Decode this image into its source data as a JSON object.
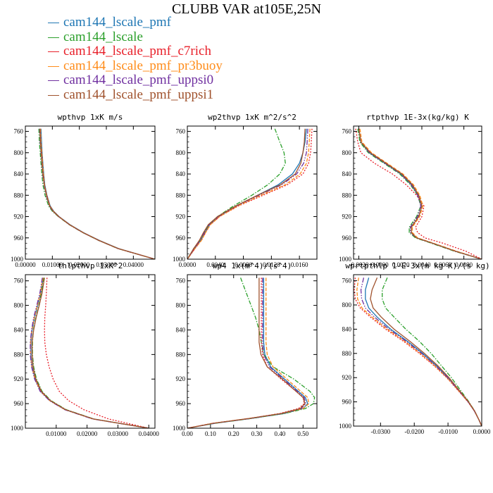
{
  "title": "CLUBB VAR at105E,25N",
  "legend": [
    {
      "label": "cam144_lscale_pmf",
      "color": "#1f77b4",
      "dash": ""
    },
    {
      "label": "cam144_lscale",
      "color": "#2ca02c",
      "dash": "6,2,1.5,2"
    },
    {
      "label": "cam144_lscale_pmf_c7rich",
      "color": "#e8202a",
      "dash": "2,2"
    },
    {
      "label": "cam144_lscale_pmf_pr3buoy",
      "color": "#ff8c1a",
      "dash": "5,2"
    },
    {
      "label": "cam144_lscale_pmf_uppsi0",
      "color": "#7030a0",
      "dash": "7,2,1.5,2,1.5,2"
    },
    {
      "label": "cam144_lscale_pmf_uppsi1",
      "color": "#a0522d",
      "dash": ""
    }
  ],
  "chart_data": [
    {
      "type": "line",
      "title": "wpthvp 1xK m/s",
      "xlim": [
        0,
        0.048
      ],
      "ylim": [
        750,
        1000
      ],
      "xticks": [
        0,
        0.01,
        0.02,
        0.03,
        0.04
      ],
      "xtick_labels": [
        "0.00000",
        "0.01000",
        "0.02000",
        "0.03000",
        "0.04000"
      ],
      "yticks": [
        760,
        800,
        840,
        880,
        920,
        960,
        1000
      ],
      "y": [
        755,
        780,
        800,
        820,
        840,
        860,
        880,
        900,
        910,
        920,
        935,
        950,
        965,
        980,
        1000
      ],
      "series": [
        {
          "values": [
            0.0058,
            0.006,
            0.0062,
            0.0065,
            0.0068,
            0.0072,
            0.008,
            0.0092,
            0.0105,
            0.0125,
            0.0165,
            0.0215,
            0.0275,
            0.0345,
            0.048
          ]
        },
        {
          "values": [
            0.005,
            0.0052,
            0.0055,
            0.0058,
            0.0061,
            0.0065,
            0.0073,
            0.0086,
            0.01,
            0.0122,
            0.0162,
            0.0212,
            0.0272,
            0.0342,
            0.048
          ]
        },
        {
          "values": [
            0.0055,
            0.0057,
            0.006,
            0.0063,
            0.0066,
            0.0071,
            0.0079,
            0.0091,
            0.0104,
            0.0124,
            0.0163,
            0.0213,
            0.0273,
            0.0343,
            0.048
          ]
        },
        {
          "values": [
            0.0056,
            0.0058,
            0.0061,
            0.0064,
            0.0067,
            0.0071,
            0.0079,
            0.0091,
            0.0104,
            0.0124,
            0.0164,
            0.0214,
            0.0274,
            0.0344,
            0.048
          ]
        },
        {
          "values": [
            0.0053,
            0.0055,
            0.0058,
            0.0061,
            0.0064,
            0.0069,
            0.0077,
            0.0089,
            0.0102,
            0.0123,
            0.0163,
            0.0213,
            0.0273,
            0.0343,
            0.048
          ]
        },
        {
          "values": [
            0.0054,
            0.0056,
            0.0059,
            0.0062,
            0.0065,
            0.007,
            0.0078,
            0.009,
            0.0103,
            0.0123,
            0.0163,
            0.0213,
            0.0273,
            0.0343,
            0.048
          ]
        }
      ]
    },
    {
      "type": "line",
      "title": "wp2thvp 1xK m^2/s^2",
      "xlim": [
        0,
        0.0185
      ],
      "ylim": [
        750,
        1000
      ],
      "xticks": [
        0,
        0.004,
        0.008,
        0.012,
        0.016
      ],
      "xtick_labels": [
        "0.0000",
        "0.0040",
        "0.0080",
        "0.0120",
        "0.0160"
      ],
      "yticks": [
        760,
        800,
        840,
        880,
        920,
        960,
        1000
      ],
      "y": [
        755,
        780,
        800,
        820,
        840,
        860,
        880,
        900,
        920,
        935,
        950,
        965,
        980,
        1000
      ],
      "series": [
        {
          "values": [
            0.017,
            0.0168,
            0.0165,
            0.016,
            0.015,
            0.013,
            0.01,
            0.007,
            0.0045,
            0.0032,
            0.0025,
            0.0019,
            0.001,
            0.0
          ]
        },
        {
          "values": [
            0.0125,
            0.0132,
            0.0138,
            0.014,
            0.0132,
            0.0115,
            0.0092,
            0.0066,
            0.0043,
            0.0031,
            0.0024,
            0.0018,
            0.0009,
            0.0
          ]
        },
        {
          "values": [
            0.0178,
            0.0177,
            0.0176,
            0.0173,
            0.0165,
            0.0143,
            0.0108,
            0.0073,
            0.0046,
            0.0033,
            0.0026,
            0.002,
            0.0011,
            0.0
          ]
        },
        {
          "values": [
            0.0175,
            0.0174,
            0.0173,
            0.017,
            0.0161,
            0.014,
            0.0105,
            0.0072,
            0.0046,
            0.0033,
            0.0026,
            0.002,
            0.0011,
            0.0
          ]
        },
        {
          "values": [
            0.0172,
            0.0171,
            0.017,
            0.0166,
            0.0156,
            0.0135,
            0.0102,
            0.007,
            0.0044,
            0.0031,
            0.0024,
            0.0018,
            0.001,
            0.0
          ]
        },
        {
          "values": [
            0.0168,
            0.0167,
            0.0165,
            0.0162,
            0.0154,
            0.0133,
            0.01,
            0.0069,
            0.0043,
            0.003,
            0.0023,
            0.0017,
            0.0009,
            0.0
          ]
        }
      ]
    },
    {
      "type": "line",
      "title": "rtpthvp 1E-3x(kg/kg) K",
      "xlim": [
        -0.0025,
        0.0097
      ],
      "ylim": [
        750,
        1000
      ],
      "xticks": [
        -0.002,
        0.0,
        0.002,
        0.004,
        0.006,
        0.008
      ],
      "xtick_labels": [
        "-0.0020",
        "0.0000",
        "0.0020",
        "0.0040",
        "0.0060",
        "0.0080"
      ],
      "yticks": [
        760,
        800,
        840,
        880,
        920,
        960,
        1000
      ],
      "y": [
        755,
        780,
        800,
        820,
        840,
        860,
        880,
        900,
        920,
        940,
        950,
        960,
        970,
        985,
        1000
      ],
      "series": [
        {
          "values": [
            -0.002,
            -0.0018,
            -0.001,
            0.0005,
            0.002,
            0.003,
            0.0037,
            0.004,
            0.0037,
            0.003,
            0.003,
            0.0035,
            0.005,
            0.0072,
            0.0097
          ]
        },
        {
          "values": [
            -0.0021,
            -0.0019,
            -0.0011,
            0.0004,
            0.0019,
            0.0029,
            0.0036,
            0.0039,
            0.0035,
            0.0028,
            0.0028,
            0.0034,
            0.0049,
            0.0071,
            0.0097
          ]
        },
        {
          "values": [
            -0.0023,
            -0.0021,
            -0.0018,
            -0.0005,
            0.0012,
            0.0025,
            0.0035,
            0.0042,
            0.004,
            0.0034,
            0.0036,
            0.0043,
            0.006,
            0.0082,
            0.0097
          ]
        },
        {
          "values": [
            -0.0019,
            -0.0017,
            -0.0008,
            0.0007,
            0.0022,
            0.0032,
            0.0038,
            0.0041,
            0.0038,
            0.0031,
            0.0031,
            0.0036,
            0.0051,
            0.0073,
            0.0097
          ]
        },
        {
          "values": [
            -0.002,
            -0.0018,
            -0.001,
            0.0005,
            0.002,
            0.003,
            0.0036,
            0.0039,
            0.0036,
            0.0029,
            0.0029,
            0.0035,
            0.005,
            0.0072,
            0.0097
          ]
        },
        {
          "values": [
            -0.002,
            -0.0018,
            -0.0009,
            0.0006,
            0.0021,
            0.0031,
            0.0037,
            0.004,
            0.0037,
            0.003,
            0.003,
            0.0035,
            0.005,
            0.0072,
            0.0097
          ]
        }
      ]
    },
    {
      "type": "line",
      "title": "thlpthvp 1xK^2",
      "xlim": [
        0,
        0.042
      ],
      "ylim": [
        750,
        1000
      ],
      "xticks": [
        0.01,
        0.02,
        0.03,
        0.04
      ],
      "xtick_labels": [
        "0.01000",
        "0.02000",
        "0.03000",
        "0.04000"
      ],
      "yticks": [
        760,
        800,
        840,
        880,
        920,
        960,
        1000
      ],
      "y": [
        755,
        780,
        800,
        820,
        840,
        860,
        880,
        900,
        920,
        940,
        955,
        970,
        985,
        1000
      ],
      "series": [
        {
          "values": [
            0.0058,
            0.005,
            0.004,
            0.003,
            0.0022,
            0.0018,
            0.0018,
            0.0022,
            0.0032,
            0.005,
            0.008,
            0.013,
            0.022,
            0.04
          ]
        },
        {
          "values": [
            0.006,
            0.0052,
            0.0044,
            0.0034,
            0.0026,
            0.0023,
            0.0023,
            0.0027,
            0.0036,
            0.0054,
            0.0083,
            0.0133,
            0.0222,
            0.04
          ]
        },
        {
          "values": [
            0.007,
            0.0068,
            0.0066,
            0.0063,
            0.0062,
            0.0063,
            0.0068,
            0.0077,
            0.009,
            0.011,
            0.014,
            0.019,
            0.027,
            0.04
          ]
        },
        {
          "values": [
            0.0057,
            0.0049,
            0.0039,
            0.0029,
            0.0021,
            0.0017,
            0.0017,
            0.0021,
            0.0031,
            0.0049,
            0.0079,
            0.0129,
            0.0219,
            0.04
          ]
        },
        {
          "values": [
            0.0055,
            0.0047,
            0.0037,
            0.0027,
            0.002,
            0.0016,
            0.0016,
            0.002,
            0.003,
            0.0048,
            0.0078,
            0.0128,
            0.0218,
            0.04
          ]
        },
        {
          "values": [
            0.0062,
            0.0054,
            0.0045,
            0.0035,
            0.0027,
            0.0022,
            0.0022,
            0.0025,
            0.0034,
            0.0052,
            0.0081,
            0.0131,
            0.0221,
            0.04
          ]
        }
      ]
    },
    {
      "type": "line",
      "title": "wp4 1x(m^4)/(s^4)",
      "xlim": [
        0,
        0.56
      ],
      "ylim": [
        750,
        1000
      ],
      "xticks": [
        0,
        0.1,
        0.2,
        0.3,
        0.4,
        0.5
      ],
      "xtick_labels": [
        "0.00",
        "0.10",
        "0.20",
        "0.30",
        "0.40",
        "0.50"
      ],
      "yticks": [
        760,
        800,
        840,
        880,
        920,
        960,
        1000
      ],
      "y": [
        755,
        780,
        800,
        820,
        840,
        860,
        880,
        900,
        920,
        940,
        950,
        960,
        968,
        976,
        984,
        992,
        1000
      ],
      "series": [
        {
          "values": [
            0.33,
            0.33,
            0.33,
            0.33,
            0.33,
            0.33,
            0.335,
            0.36,
            0.42,
            0.48,
            0.51,
            0.52,
            0.5,
            0.42,
            0.28,
            0.12,
            0.0
          ]
        },
        {
          "values": [
            0.23,
            0.255,
            0.275,
            0.295,
            0.31,
            0.32,
            0.33,
            0.37,
            0.46,
            0.53,
            0.55,
            0.545,
            0.51,
            0.42,
            0.28,
            0.12,
            0.0
          ]
        },
        {
          "values": [
            0.32,
            0.32,
            0.32,
            0.32,
            0.32,
            0.32,
            0.325,
            0.345,
            0.405,
            0.47,
            0.5,
            0.505,
            0.48,
            0.4,
            0.27,
            0.11,
            0.0
          ]
        },
        {
          "values": [
            0.34,
            0.34,
            0.34,
            0.34,
            0.34,
            0.34,
            0.345,
            0.37,
            0.43,
            0.49,
            0.52,
            0.525,
            0.5,
            0.41,
            0.27,
            0.11,
            0.0
          ]
        },
        {
          "values": [
            0.325,
            0.325,
            0.325,
            0.325,
            0.325,
            0.325,
            0.33,
            0.355,
            0.415,
            0.475,
            0.505,
            0.512,
            0.492,
            0.41,
            0.275,
            0.115,
            0.0
          ]
        },
        {
          "values": [
            0.31,
            0.31,
            0.31,
            0.31,
            0.31,
            0.31,
            0.318,
            0.345,
            0.41,
            0.47,
            0.5,
            0.508,
            0.488,
            0.405,
            0.27,
            0.112,
            0.0
          ]
        }
      ]
    },
    {
      "type": "line",
      "title": "wprtpthlp 1-E-3x(m kg K)/(s kg)",
      "xlim": [
        -0.038,
        0.0
      ],
      "ylim": [
        750,
        1000
      ],
      "xticks": [
        -0.03,
        -0.02,
        -0.01,
        0.0
      ],
      "xtick_labels": [
        "-0.0300",
        "-0.0200",
        "-0.0100",
        "0.0000"
      ],
      "yticks": [
        760,
        800,
        840,
        880,
        920,
        960,
        1000
      ],
      "y": [
        755,
        775,
        790,
        805,
        820,
        840,
        860,
        880,
        900,
        920,
        940,
        960,
        975,
        990,
        1000
      ],
      "series": [
        {
          "values": [
            -0.0335,
            -0.0345,
            -0.0345,
            -0.0335,
            -0.031,
            -0.027,
            -0.022,
            -0.0175,
            -0.0135,
            -0.01,
            -0.007,
            -0.004,
            -0.0022,
            -0.0008,
            0.0
          ]
        },
        {
          "values": [
            -0.028,
            -0.0295,
            -0.0295,
            -0.0285,
            -0.026,
            -0.0225,
            -0.0185,
            -0.015,
            -0.012,
            -0.009,
            -0.0064,
            -0.0038,
            -0.0021,
            -0.0008,
            0.0
          ]
        },
        {
          "values": [
            -0.0375,
            -0.0378,
            -0.0375,
            -0.036,
            -0.033,
            -0.0285,
            -0.0232,
            -0.0185,
            -0.0142,
            -0.0104,
            -0.0072,
            -0.0041,
            -0.0022,
            -0.0008,
            0.0
          ]
        },
        {
          "values": [
            -0.0365,
            -0.037,
            -0.0368,
            -0.0355,
            -0.0325,
            -0.028,
            -0.0228,
            -0.0182,
            -0.014,
            -0.0103,
            -0.0071,
            -0.004,
            -0.0022,
            -0.0008,
            0.0
          ]
        },
        {
          "values": [
            -0.035,
            -0.0358,
            -0.0356,
            -0.0345,
            -0.0318,
            -0.0275,
            -0.0224,
            -0.0178,
            -0.0137,
            -0.0101,
            -0.007,
            -0.004,
            -0.0022,
            -0.0008,
            0.0
          ]
        },
        {
          "values": [
            -0.031,
            -0.0325,
            -0.033,
            -0.0322,
            -0.0298,
            -0.026,
            -0.0213,
            -0.017,
            -0.0131,
            -0.0097,
            -0.0068,
            -0.0039,
            -0.0021,
            -0.0008,
            0.0
          ]
        }
      ]
    }
  ]
}
